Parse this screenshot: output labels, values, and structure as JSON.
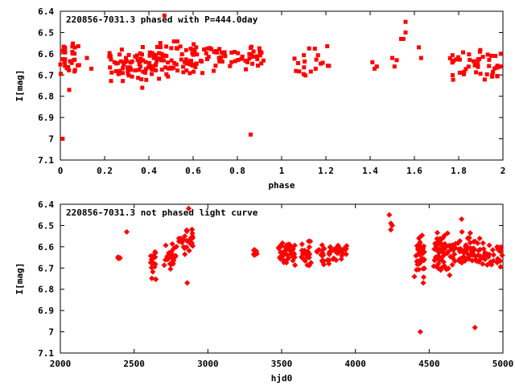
{
  "colors": {
    "points": "#ff0000",
    "axes": "#000000",
    "background": "#ffffff"
  },
  "chart_data": [
    {
      "type": "scatter",
      "title": "220856-7031.3 phased with P=444.0day",
      "xlabel": "phase",
      "ylabel": "I[mag]",
      "xlim": [
        0,
        2
      ],
      "ylim": [
        7.1,
        6.4
      ],
      "y_inverted": true,
      "grid": false,
      "xticks": [
        "0",
        "0.2",
        "0.4",
        "0.6",
        "0.8",
        "1",
        "1.2",
        "1.4",
        "1.6",
        "1.8",
        "2"
      ],
      "yticks": [
        "6.4",
        "6.5",
        "6.6",
        "6.7",
        "6.8",
        "6.9",
        "7",
        "7.1"
      ],
      "clusters": [
        {
          "x": [
            0.0,
            0.09
          ],
          "y": [
            6.53,
            6.73
          ],
          "n": 30
        },
        {
          "x": [
            0.22,
            0.42
          ],
          "y": [
            6.56,
            6.74
          ],
          "n": 70
        },
        {
          "x": [
            0.42,
            0.62
          ],
          "y": [
            6.52,
            6.74
          ],
          "n": 75
        },
        {
          "x": [
            0.62,
            0.92
          ],
          "y": [
            6.54,
            6.7
          ],
          "n": 55
        },
        {
          "x": [
            1.05,
            1.22
          ],
          "y": [
            6.55,
            6.74
          ],
          "n": 20
        },
        {
          "x": [
            1.76,
            1.98
          ],
          "y": [
            6.56,
            6.74
          ],
          "n": 50
        }
      ],
      "points": [
        {
          "x": 0.01,
          "y": 7.0
        },
        {
          "x": 0.47,
          "y": 6.42
        },
        {
          "x": 0.86,
          "y": 6.98
        },
        {
          "x": 0.04,
          "y": 6.77
        },
        {
          "x": 0.37,
          "y": 6.76
        },
        {
          "x": 0.14,
          "y": 6.67
        },
        {
          "x": 0.12,
          "y": 6.62
        },
        {
          "x": 1.41,
          "y": 6.64
        },
        {
          "x": 1.42,
          "y": 6.67
        },
        {
          "x": 1.43,
          "y": 6.66
        },
        {
          "x": 1.5,
          "y": 6.62
        },
        {
          "x": 1.52,
          "y": 6.63
        },
        {
          "x": 1.51,
          "y": 6.66
        },
        {
          "x": 1.54,
          "y": 6.53
        },
        {
          "x": 1.55,
          "y": 6.53
        },
        {
          "x": 1.56,
          "y": 6.5
        },
        {
          "x": 1.56,
          "y": 6.45
        },
        {
          "x": 1.62,
          "y": 6.57
        },
        {
          "x": 1.63,
          "y": 6.62
        },
        {
          "x": 1.99,
          "y": 6.6
        },
        {
          "x": 1.99,
          "y": 6.66
        }
      ]
    },
    {
      "type": "scatter",
      "title": "220856-7031.3 not phased light curve",
      "xlabel": "hjd0",
      "ylabel": "I[mag]",
      "xlim": [
        2000,
        5000
      ],
      "ylim": [
        7.1,
        6.4
      ],
      "y_inverted": true,
      "grid": false,
      "xticks": [
        "2000",
        "2500",
        "3000",
        "3500",
        "4000",
        "4500",
        "5000"
      ],
      "yticks": [
        "6.4",
        "6.5",
        "6.6",
        "6.7",
        "6.8",
        "6.9",
        "7",
        "7.1"
      ],
      "clusters": [
        {
          "x": [
            2390,
            2405
          ],
          "y": [
            6.62,
            6.68
          ],
          "n": 6
        },
        {
          "x": [
            2610,
            2650
          ],
          "y": [
            6.59,
            6.77
          ],
          "n": 20
        },
        {
          "x": [
            2700,
            2790
          ],
          "y": [
            6.56,
            6.72
          ],
          "n": 25
        },
        {
          "x": [
            2800,
            2900
          ],
          "y": [
            6.51,
            6.65
          ],
          "n": 30
        },
        {
          "x": [
            3310,
            3340
          ],
          "y": [
            6.59,
            6.66
          ],
          "n": 8
        },
        {
          "x": [
            3480,
            3600
          ],
          "y": [
            6.57,
            6.7
          ],
          "n": 40
        },
        {
          "x": [
            3630,
            3700
          ],
          "y": [
            6.57,
            6.7
          ],
          "n": 25
        },
        {
          "x": [
            3740,
            3790
          ],
          "y": [
            6.58,
            6.7
          ],
          "n": 15
        },
        {
          "x": [
            3810,
            3880
          ],
          "y": [
            6.57,
            6.69
          ],
          "n": 20
        },
        {
          "x": [
            3880,
            3940
          ],
          "y": [
            6.58,
            6.68
          ],
          "n": 15
        },
        {
          "x": [
            4410,
            4470
          ],
          "y": [
            6.52,
            6.75
          ],
          "n": 35
        },
        {
          "x": [
            4530,
            4650
          ],
          "y": [
            6.53,
            6.74
          ],
          "n": 55
        },
        {
          "x": [
            4650,
            4870
          ],
          "y": [
            6.52,
            6.72
          ],
          "n": 70
        },
        {
          "x": [
            4870,
            5000
          ],
          "y": [
            6.57,
            6.72
          ],
          "n": 30
        }
      ],
      "points": [
        {
          "x": 2450,
          "y": 6.53
        },
        {
          "x": 2870,
          "y": 6.42
        },
        {
          "x": 2860,
          "y": 6.77
        },
        {
          "x": 4230,
          "y": 6.45
        },
        {
          "x": 4240,
          "y": 6.49
        },
        {
          "x": 4240,
          "y": 6.52
        },
        {
          "x": 4250,
          "y": 6.5
        },
        {
          "x": 4440,
          "y": 7.0
        },
        {
          "x": 4810,
          "y": 6.98
        },
        {
          "x": 4720,
          "y": 6.47
        },
        {
          "x": 4460,
          "y": 6.77
        },
        {
          "x": 4400,
          "y": 6.74
        }
      ]
    }
  ]
}
